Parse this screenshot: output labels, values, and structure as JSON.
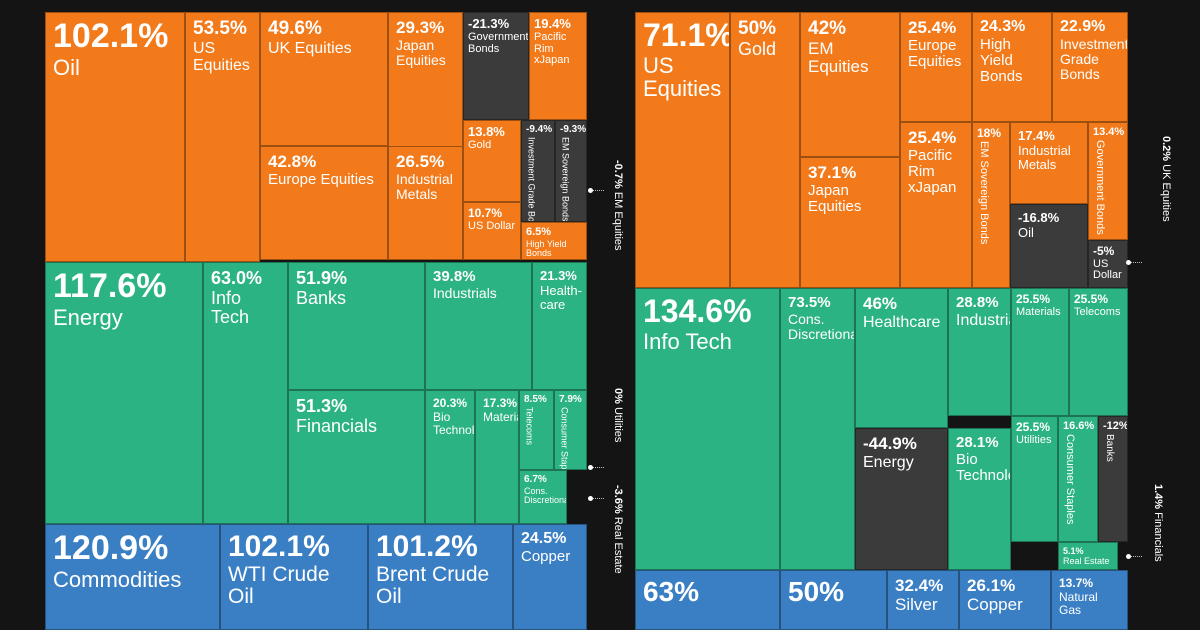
{
  "colors": {
    "orange": "#f27a1a",
    "green": "#2bb383",
    "blue": "#3a7fc4",
    "dark": "#3b3b3b",
    "background": "#141414"
  },
  "chart_data": [
    {
      "type": "treemap",
      "groups": [
        {
          "name": "",
          "color": "orange",
          "items": [
            {
              "value": "102.1%",
              "label": "Oil"
            },
            {
              "value": "53.5%",
              "label": "US Equities"
            },
            {
              "value": "49.6%",
              "label": "UK Equities"
            },
            {
              "value": "29.3%",
              "label": "Japan Equities"
            },
            {
              "value": "-21.3%",
              "label": "Government Bonds"
            },
            {
              "value": "19.4%",
              "label": "Pacific Rim xJapan"
            },
            {
              "value": "42.8%",
              "label": "Europe Equities"
            },
            {
              "value": "26.5%",
              "label": "Industrial Metals"
            },
            {
              "value": "13.8%",
              "label": "Gold"
            },
            {
              "value": "-9.4%",
              "label": "Investment Grade Bonds"
            },
            {
              "value": "-9.3%",
              "label": "EM Sovereign Bonds"
            },
            {
              "value": "10.7%",
              "label": "US Dollar"
            },
            {
              "value": "6.5%",
              "label": "High Yield Bonds"
            },
            {
              "value": "-0.7%",
              "label": "EM Equities"
            }
          ]
        },
        {
          "name": "",
          "color": "green",
          "items": [
            {
              "value": "117.6%",
              "label": "Energy"
            },
            {
              "value": "63.0%",
              "label": "Info Tech"
            },
            {
              "value": "51.9%",
              "label": "Banks"
            },
            {
              "value": "39.8%",
              "label": "Industrials"
            },
            {
              "value": "21.3%",
              "label": "Health-care"
            },
            {
              "value": "51.3%",
              "label": "Financials"
            },
            {
              "value": "20.3%",
              "label": "Bio Technology"
            },
            {
              "value": "17.3%",
              "label": "Materials"
            },
            {
              "value": "8.5%",
              "label": "Telecoms"
            },
            {
              "value": "7.9%",
              "label": "Consumer Staples"
            },
            {
              "value": "6.7%",
              "label": "Cons. Discretionary"
            },
            {
              "value": "0%",
              "label": "Utilities"
            },
            {
              "value": "-3.6%",
              "label": "Real Estate"
            }
          ]
        },
        {
          "name": "",
          "color": "blue",
          "items": [
            {
              "value": "120.9%",
              "label": "Commodities"
            },
            {
              "value": "102.1%",
              "label": "WTI Crude Oil"
            },
            {
              "value": "101.2%",
              "label": "Brent Crude Oil"
            },
            {
              "value": "24.5%",
              "label": "Copper"
            }
          ]
        }
      ]
    },
    {
      "type": "treemap",
      "groups": [
        {
          "name": "",
          "color": "orange",
          "items": [
            {
              "value": "71.1%",
              "label": "US Equities"
            },
            {
              "value": "50%",
              "label": "Gold"
            },
            {
              "value": "42%",
              "label": "EM Equities"
            },
            {
              "value": "25.4%",
              "label": "Europe Equities"
            },
            {
              "value": "24.3%",
              "label": "High Yield Bonds"
            },
            {
              "value": "22.9%",
              "label": "Investment Grade Bonds"
            },
            {
              "value": "37.1%",
              "label": "Japan Equities"
            },
            {
              "value": "25.4%",
              "label": "Pacific Rim xJapan"
            },
            {
              "value": "18%",
              "label": "EM Sovereign Bonds"
            },
            {
              "value": "17.4%",
              "label": "Industrial Metals"
            },
            {
              "value": "13.4%",
              "label": "Government Bonds"
            },
            {
              "value": "-16.8%",
              "label": "Oil"
            },
            {
              "value": "-5%",
              "label": "US Dollar"
            },
            {
              "value": "0.2%",
              "label": "UK Equities"
            }
          ]
        },
        {
          "name": "",
          "color": "green",
          "items": [
            {
              "value": "134.6%",
              "label": "Info Tech"
            },
            {
              "value": "73.5%",
              "label": "Cons. Discretionary"
            },
            {
              "value": "46%",
              "label": "Healthcare"
            },
            {
              "value": "28.8%",
              "label": "Industrials"
            },
            {
              "value": "25.5%",
              "label": "Materials"
            },
            {
              "value": "25.5%",
              "label": "Telecoms"
            },
            {
              "value": "-44.9%",
              "label": "Energy"
            },
            {
              "value": "28.1%",
              "label": "Bio Technology"
            },
            {
              "value": "25.5%",
              "label": "Utilities"
            },
            {
              "value": "16.6%",
              "label": "Consumer Staples"
            },
            {
              "value": "-12%",
              "label": "Banks"
            },
            {
              "value": "5.1%",
              "label": "Real Estate"
            },
            {
              "value": "1.4%",
              "label": "Financials"
            }
          ]
        },
        {
          "name": "",
          "color": "blue",
          "items": [
            {
              "value": "63%",
              "label": ""
            },
            {
              "value": "50%",
              "label": ""
            },
            {
              "value": "32.4%",
              "label": "Silver"
            },
            {
              "value": "26.1%",
              "label": "Copper"
            },
            {
              "value": "13.7%",
              "label": "Natural Gas"
            }
          ]
        }
      ]
    }
  ]
}
